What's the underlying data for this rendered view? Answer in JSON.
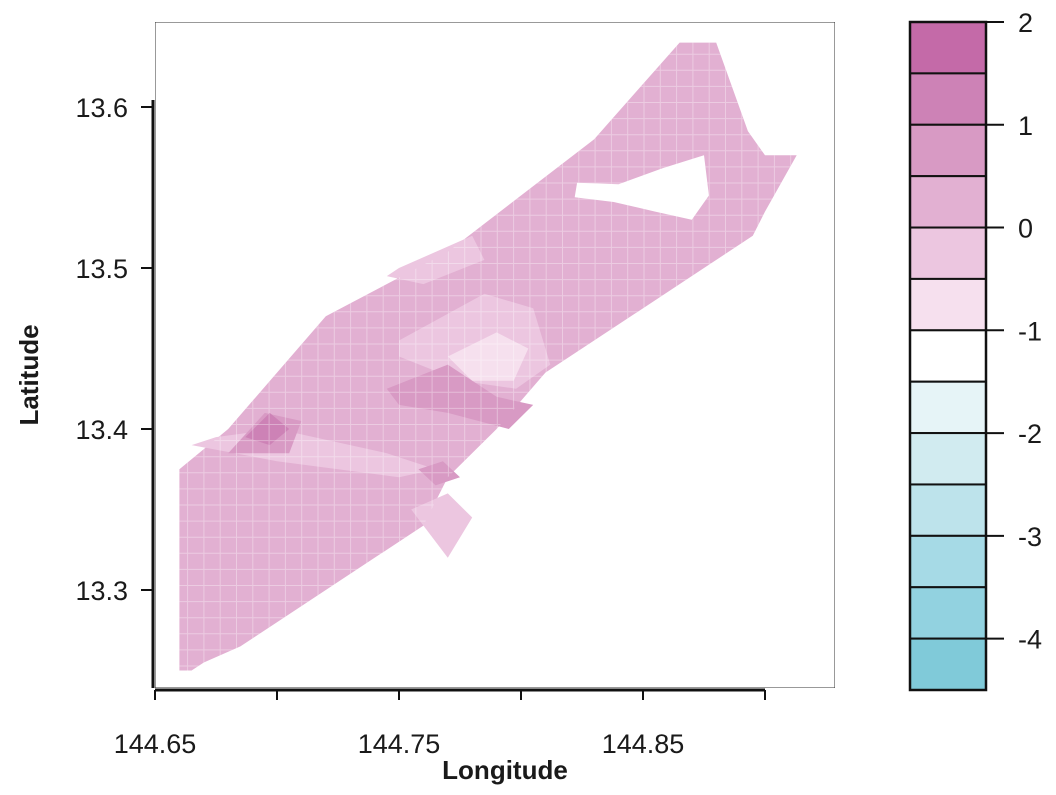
{
  "chart_data": {
    "type": "heatmap",
    "title": "",
    "xlabel": "Longitude",
    "ylabel": "Latitude",
    "xlim": [
      144.6,
      144.93
    ],
    "ylim": [
      13.24,
      13.65
    ],
    "x_ticks": [
      144.65,
      144.7,
      144.75,
      144.8,
      144.85,
      144.9
    ],
    "x_tick_labels": [
      "144.65",
      "",
      "144.75",
      "",
      "144.85",
      ""
    ],
    "y_ticks": [
      13.3,
      13.4,
      13.5,
      13.6
    ],
    "y_tick_labels": [
      "13.3",
      "13.4",
      "13.5",
      "13.6"
    ],
    "colorbar": {
      "ticks": [
        2,
        1,
        0,
        -1,
        -2,
        -3,
        -4
      ],
      "tick_labels": [
        "2",
        "1",
        "0",
        "-1",
        "-2",
        "-3",
        "-4"
      ],
      "range": [
        -4.5,
        2.0
      ],
      "levels": [
        {
          "from": 1.5,
          "to": 2.0,
          "color": "#c46aa8"
        },
        {
          "from": 1.0,
          "to": 1.5,
          "color": "#cd82b6"
        },
        {
          "from": 0.5,
          "to": 1.0,
          "color": "#d89ac4"
        },
        {
          "from": 0.0,
          "to": 0.5,
          "color": "#e2b0d2"
        },
        {
          "from": -0.5,
          "to": 0.0,
          "color": "#ecc6e0"
        },
        {
          "from": -1.0,
          "to": -0.5,
          "color": "#f6e0ee"
        },
        {
          "from": -1.5,
          "to": -1.0,
          "color": "#ffffff"
        },
        {
          "from": -2.0,
          "to": -1.5,
          "color": "#e6f4f7"
        },
        {
          "from": -2.5,
          "to": -2.0,
          "color": "#d1ebf0"
        },
        {
          "from": -3.0,
          "to": -2.5,
          "color": "#bde3eb"
        },
        {
          "from": -3.5,
          "to": -3.0,
          "color": "#a6dae6"
        },
        {
          "from": -4.0,
          "to": -3.5,
          "color": "#92d2e0"
        },
        {
          "from": -4.5,
          "to": -4.0,
          "color": "#80cad9"
        }
      ]
    },
    "regions": [
      {
        "name": "background-field",
        "value": 0.25,
        "polygon": [
          [
            144.66,
            13.25
          ],
          [
            144.66,
            13.375
          ],
          [
            144.68,
            13.4
          ],
          [
            144.72,
            13.47
          ],
          [
            144.77,
            13.51
          ],
          [
            144.83,
            13.58
          ],
          [
            144.865,
            13.64
          ],
          [
            144.88,
            13.64
          ],
          [
            144.893,
            13.585
          ],
          [
            144.9,
            13.57
          ],
          [
            144.913,
            13.57
          ],
          [
            144.9,
            13.535
          ],
          [
            144.895,
            13.52
          ],
          [
            144.875,
            13.5
          ],
          [
            144.84,
            13.465
          ],
          [
            144.81,
            13.435
          ],
          [
            144.79,
            13.4
          ],
          [
            144.77,
            13.37
          ],
          [
            144.76,
            13.34
          ],
          [
            144.74,
            13.32
          ],
          [
            144.72,
            13.3
          ],
          [
            144.7,
            13.28
          ],
          [
            144.685,
            13.265
          ],
          [
            144.67,
            13.255
          ],
          [
            144.665,
            13.25
          ]
        ]
      },
      {
        "name": "cold-core",
        "value": -3.5,
        "polygon": [
          [
            144.825,
            13.55
          ],
          [
            144.845,
            13.55
          ],
          [
            144.862,
            13.56
          ],
          [
            144.872,
            13.565
          ],
          [
            144.874,
            13.548
          ],
          [
            144.868,
            13.535
          ],
          [
            144.855,
            13.54
          ],
          [
            144.84,
            13.545
          ],
          [
            144.825,
            13.547
          ]
        ]
      },
      {
        "name": "cold-halo",
        "value": -1.25,
        "polygon": [
          [
            144.823,
            13.553
          ],
          [
            144.84,
            13.552
          ],
          [
            144.858,
            13.562
          ],
          [
            144.875,
            13.57
          ],
          [
            144.877,
            13.545
          ],
          [
            144.87,
            13.53
          ],
          [
            144.855,
            13.535
          ],
          [
            144.838,
            13.541
          ],
          [
            144.822,
            13.544
          ]
        ]
      },
      {
        "name": "low-patch-1",
        "value": -0.25,
        "polygon": [
          [
            144.75,
            13.5
          ],
          [
            144.78,
            13.52
          ],
          [
            144.785,
            13.505
          ],
          [
            144.76,
            13.49
          ],
          [
            144.745,
            13.495
          ]
        ]
      },
      {
        "name": "low-patch-2",
        "value": -0.25,
        "polygon": [
          [
            144.75,
            13.455
          ],
          [
            144.785,
            13.484
          ],
          [
            144.805,
            13.475
          ],
          [
            144.812,
            13.44
          ],
          [
            144.798,
            13.425
          ],
          [
            144.775,
            13.43
          ],
          [
            144.75,
            13.445
          ]
        ]
      },
      {
        "name": "low-patch-3",
        "value": -0.75,
        "polygon": [
          [
            144.77,
            13.445
          ],
          [
            144.79,
            13.46
          ],
          [
            144.803,
            13.45
          ],
          [
            144.797,
            13.43
          ],
          [
            144.78,
            13.43
          ]
        ]
      },
      {
        "name": "low-strip",
        "value": -0.25,
        "polygon": [
          [
            144.665,
            13.39
          ],
          [
            144.7,
            13.38
          ],
          [
            144.75,
            13.37
          ],
          [
            144.765,
            13.375
          ],
          [
            144.745,
            13.385
          ],
          [
            144.7,
            13.4
          ],
          [
            144.675,
            13.395
          ]
        ]
      },
      {
        "name": "low-west",
        "value": -0.25,
        "polygon": [
          [
            144.755,
            13.35
          ],
          [
            144.77,
            13.32
          ],
          [
            144.78,
            13.345
          ],
          [
            144.77,
            13.36
          ]
        ]
      },
      {
        "name": "high-west-1",
        "value": 0.75,
        "polygon": [
          [
            144.68,
            13.385
          ],
          [
            144.695,
            13.41
          ],
          [
            144.71,
            13.405
          ],
          [
            144.705,
            13.385
          ]
        ]
      },
      {
        "name": "high-west-2",
        "value": 1.25,
        "polygon": [
          [
            144.687,
            13.395
          ],
          [
            144.697,
            13.41
          ],
          [
            144.705,
            13.4
          ],
          [
            144.697,
            13.39
          ]
        ]
      },
      {
        "name": "high-center",
        "value": 0.75,
        "polygon": [
          [
            144.745,
            13.425
          ],
          [
            144.77,
            13.44
          ],
          [
            144.79,
            13.42
          ],
          [
            144.805,
            13.415
          ],
          [
            144.795,
            13.4
          ],
          [
            144.77,
            13.41
          ],
          [
            144.75,
            13.415
          ]
        ]
      },
      {
        "name": "high-small",
        "value": 0.75,
        "polygon": [
          [
            144.758,
            13.375
          ],
          [
            144.768,
            13.38
          ],
          [
            144.775,
            13.37
          ],
          [
            144.765,
            13.365
          ]
        ]
      }
    ]
  }
}
